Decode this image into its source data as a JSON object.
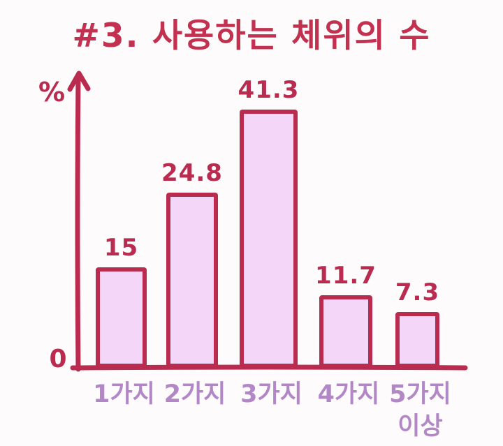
{
  "page": {
    "title": "#3. 사용하는 체위의 수"
  },
  "chart_data": {
    "type": "bar",
    "title": "#3. 사용하는 체위의 수",
    "xlabel": "",
    "ylabel": "%",
    "origin_tick_label": "0",
    "categories": [
      "1가지",
      "2가지",
      "3가지",
      "4가지",
      "5가지\n이상"
    ],
    "values": [
      15,
      24.8,
      41.3,
      11.7,
      7.3
    ],
    "value_labels": [
      "15",
      "24.8",
      "41.3",
      "11.7",
      "7.3"
    ],
    "unit": "%",
    "ylim": [
      0,
      45
    ],
    "grid": false,
    "legend": null,
    "style": "hand-drawn",
    "colors": {
      "outline": "#b92c50",
      "title": "#c23150",
      "bar_fill": "#f3d6f8",
      "value_label": "#b92c50",
      "category_label": "#b287c6",
      "background": "#fefbfd"
    }
  }
}
